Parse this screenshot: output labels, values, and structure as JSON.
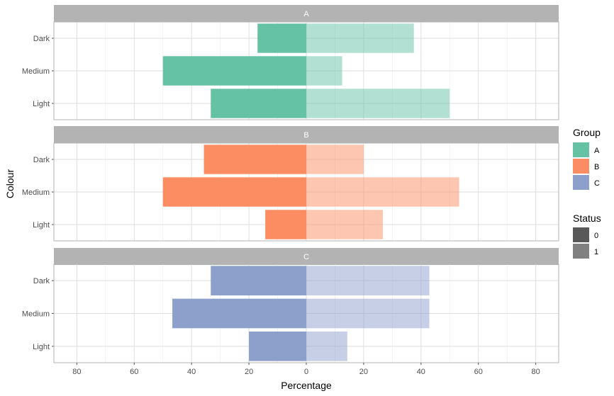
{
  "chart_data": {
    "type": "bar",
    "orientation": "horizontal",
    "xlabel": "Percentage",
    "ylabel": "Colour",
    "xlim": [
      -88,
      88
    ],
    "x_ticks": [
      -80,
      -60,
      -40,
      -20,
      0,
      20,
      40,
      60,
      80
    ],
    "x_tick_labels": [
      "80",
      "60",
      "40",
      "20",
      "0",
      "20",
      "40",
      "60",
      "80"
    ],
    "categories": [
      "Dark",
      "Medium",
      "Light"
    ],
    "grid": true,
    "legend_position": "right",
    "legend": {
      "group": {
        "title": "Group",
        "entries": [
          {
            "label": "A",
            "color": "#66c2a5"
          },
          {
            "label": "B",
            "color": "#fc8d62"
          },
          {
            "label": "C",
            "color": "#8da0cb"
          }
        ]
      },
      "status": {
        "title": "Status",
        "entries": [
          {
            "label": "0",
            "color": "#595959"
          },
          {
            "label": "1",
            "color": "#808080"
          }
        ]
      }
    },
    "panels": [
      {
        "title": "A",
        "color": "#66c2a5",
        "status0": [
          -17,
          -50,
          -33.3
        ],
        "status1": [
          37.5,
          12.5,
          50
        ]
      },
      {
        "title": "B",
        "color": "#fc8d62",
        "status0": [
          -35.7,
          -50,
          -14.3
        ],
        "status1": [
          20,
          53.3,
          26.7
        ]
      },
      {
        "title": "C",
        "color": "#8da0cb",
        "status0": [
          -33.3,
          -46.7,
          -20
        ],
        "status1": [
          42.9,
          42.9,
          14.3
        ]
      }
    ]
  }
}
